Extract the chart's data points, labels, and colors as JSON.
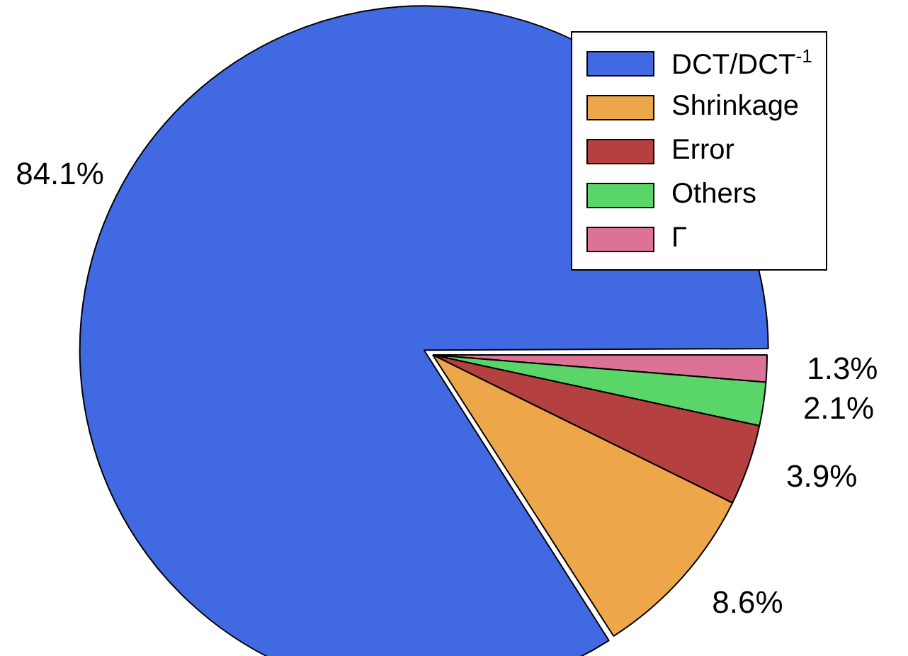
{
  "chart_data": {
    "type": "pie",
    "categories": [
      "DCT/DCT$^{-1}$",
      "Shrinkage",
      "Error",
      "Others",
      "Γ"
    ],
    "values": [
      84.1,
      8.6,
      3.9,
      2.1,
      1.3
    ],
    "colors": [
      "#4169e1",
      "#eea64a",
      "#b54040",
      "#5ad567",
      "#dc7298"
    ],
    "value_labels": [
      "84.1%",
      "8.6%",
      "3.9%",
      "2.1%",
      "1.3%"
    ],
    "legend": "top right"
  }
}
